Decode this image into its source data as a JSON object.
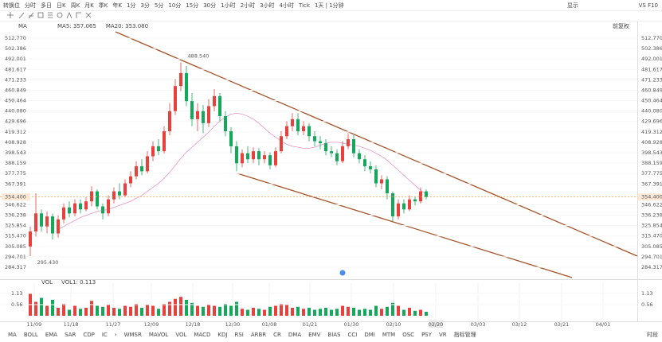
{
  "toolbar": {
    "items": [
      "转换位",
      "分时",
      "多日",
      "日K",
      "周K",
      "月K",
      "季K",
      "年K",
      "1分",
      "3分",
      "5分",
      "10分",
      "15分",
      "30分",
      "1小时",
      "2小时",
      "3小时",
      "4小时",
      "Tick",
      "1天 | 1分钟"
    ],
    "active_index": 17,
    "right": [
      "显示",
      "VS F10"
    ]
  },
  "chart_data": {
    "type": "candlestick",
    "legend": {
      "name": "MA",
      "items": [
        {
          "label": "MA5: 357.065",
          "color": "#f39a2b"
        },
        {
          "label": "MA20: 353.080",
          "color": "#e37bc1"
        }
      ],
      "adjust": "前复权"
    },
    "xlim": [
      -5.43,
      108.86
    ],
    "xticks": [
      {
        "value": 0.7,
        "label": "11/09"
      },
      {
        "value": 7.29,
        "label": "11/18"
      },
      {
        "value": 14.86,
        "label": "11/27"
      },
      {
        "value": 21.71,
        "label": "12/09"
      },
      {
        "value": 29.14,
        "label": "12/18"
      },
      {
        "value": 36.29,
        "label": "12/30"
      },
      {
        "value": 42.86,
        "label": "01/08"
      },
      {
        "value": 50.14,
        "label": "01/21"
      },
      {
        "value": 57.57,
        "label": "01/30"
      },
      {
        "value": 65.14,
        "label": "02/10"
      },
      {
        "value": 72.71,
        "label": "02/20"
      },
      {
        "value": 80.29,
        "label": "03/03"
      },
      {
        "value": 87.71,
        "label": "03/12"
      },
      {
        "value": 95.29,
        "label": "03/21"
      },
      {
        "value": 102.71,
        "label": "04/01"
      }
    ],
    "ylim": [
      277.18,
      519.12
    ],
    "yticks": [
      {
        "value": 512.77,
        "label": "512.770"
      },
      {
        "value": 502.386,
        "label": "502.386"
      },
      {
        "value": 492.001,
        "label": "492.001"
      },
      {
        "value": 481.617,
        "label": "481.617"
      },
      {
        "value": 471.233,
        "label": "471.233"
      },
      {
        "value": 460.849,
        "label": "460.849"
      },
      {
        "value": 450.464,
        "label": "450.464"
      },
      {
        "value": 440.08,
        "label": "440.080"
      },
      {
        "value": 429.696,
        "label": "429.696"
      },
      {
        "value": 419.312,
        "label": "419.312"
      },
      {
        "value": 408.928,
        "label": "408.928"
      },
      {
        "value": 398.543,
        "label": "398.543"
      },
      {
        "value": 388.159,
        "label": "388.159"
      },
      {
        "value": 377.775,
        "label": "377.775"
      },
      {
        "value": 367.391,
        "label": "367.391"
      },
      {
        "value": 346.622,
        "label": "346.622"
      },
      {
        "value": 336.238,
        "label": "336.238"
      },
      {
        "value": 325.854,
        "label": "325.854"
      },
      {
        "value": 315.47,
        "label": "315.470"
      },
      {
        "value": 305.085,
        "label": "305.085"
      },
      {
        "value": 294.701,
        "label": "294.701"
      },
      {
        "value": 284.317,
        "label": "284.317"
      }
    ],
    "up_color": "#e8413c",
    "down_color": "#14a85a",
    "open": [
      305,
      320,
      338,
      325,
      335,
      318,
      332,
      344,
      338,
      348,
      342,
      350,
      360,
      345,
      338,
      352,
      360,
      356,
      368,
      375,
      385,
      380,
      395,
      405,
      400,
      420,
      440,
      465,
      478,
      450,
      432,
      440,
      428,
      445,
      455,
      435,
      420,
      405,
      388,
      398,
      392,
      400,
      392,
      396,
      386,
      400,
      415,
      425,
      432,
      420,
      425,
      415,
      410,
      408,
      400,
      398,
      390,
      405,
      412,
      398,
      392,
      385,
      382,
      368,
      372,
      358,
      335,
      348,
      342,
      352,
      350,
      360
    ],
    "high": [
      325,
      358,
      342,
      340,
      338,
      336,
      348,
      350,
      352,
      352,
      354,
      365,
      362,
      348,
      356,
      364,
      368,
      372,
      380,
      390,
      392,
      400,
      410,
      412,
      425,
      448,
      472,
      488.54,
      485,
      458,
      448,
      446,
      452,
      462,
      458,
      440,
      424,
      410,
      402,
      405,
      404,
      403,
      400,
      399,
      404,
      420,
      430,
      438,
      438,
      430,
      428,
      420,
      415,
      412,
      405,
      402,
      410,
      418,
      416,
      402,
      396,
      390,
      386,
      376,
      375,
      360,
      352,
      352,
      356,
      355,
      364,
      362
    ],
    "low": [
      295.43,
      315,
      320,
      318,
      312,
      314,
      328,
      334,
      335,
      338,
      340,
      345,
      342,
      332,
      335,
      348,
      352,
      354,
      364,
      372,
      376,
      378,
      390,
      396,
      398,
      416,
      436,
      460,
      445,
      425,
      420,
      418,
      424,
      440,
      430,
      415,
      398,
      380,
      384,
      388,
      388,
      386,
      388,
      382,
      384,
      398,
      412,
      420,
      416,
      416,
      410,
      405,
      402,
      396,
      394,
      386,
      388,
      402,
      394,
      388,
      380,
      378,
      364,
      362,
      352,
      330,
      332,
      338,
      340,
      346,
      348,
      352
    ],
    "close": [
      320,
      338,
      325,
      335,
      318,
      332,
      344,
      338,
      348,
      342,
      350,
      360,
      345,
      338,
      352,
      360,
      356,
      368,
      375,
      385,
      380,
      395,
      405,
      400,
      420,
      440,
      465,
      478,
      450,
      432,
      440,
      428,
      445,
      455,
      435,
      420,
      405,
      388,
      398,
      392,
      400,
      392,
      396,
      386,
      400,
      415,
      425,
      432,
      420,
      425,
      415,
      410,
      408,
      400,
      398,
      390,
      405,
      412,
      398,
      392,
      385,
      382,
      368,
      372,
      358,
      335,
      348,
      342,
      352,
      350,
      360,
      354.4
    ],
    "ma_line": {
      "color": "#e9a0cf",
      "values": [
        null,
        null,
        null,
        null,
        null,
        322,
        325,
        328,
        331,
        334,
        336,
        338,
        340,
        341,
        342,
        344,
        346,
        348,
        350,
        353,
        356,
        360,
        364,
        368,
        373,
        379,
        386,
        393,
        399,
        404,
        409,
        414,
        419,
        425,
        430,
        434,
        437,
        438,
        437,
        435,
        432,
        428,
        423,
        418,
        414,
        410,
        407,
        405,
        404,
        403,
        403,
        404,
        406,
        408,
        409,
        409,
        408,
        407,
        406,
        405,
        403,
        401,
        398,
        395,
        391,
        386,
        381,
        376,
        371,
        366,
        361,
        357
      ]
    },
    "last_price": {
      "value": 354.4,
      "label": "354.400"
    },
    "annotations": [
      {
        "index": 27,
        "value": 488.54,
        "label": "488.540"
      },
      {
        "index": 0,
        "value": 295.43,
        "label": "295.430"
      }
    ],
    "volume": {
      "name": "VOL",
      "legend": "VOL1: 0.113",
      "ylim": [
        0,
        1.2
      ],
      "yticks": [
        1.13,
        0.56
      ],
      "values": [
        1.1,
        0.7,
        0.9,
        0.5,
        0.8,
        0.4,
        0.6,
        0.3,
        0.5,
        0.35,
        0.4,
        0.75,
        0.5,
        0.45,
        0.55,
        0.4,
        0.35,
        0.5,
        0.45,
        0.6,
        0.4,
        0.55,
        0.5,
        0.35,
        0.6,
        0.7,
        0.85,
        0.95,
        0.8,
        0.65,
        0.5,
        0.45,
        0.55,
        0.5,
        0.45,
        0.6,
        0.5,
        0.7,
        0.35,
        0.3,
        0.4,
        0.35,
        0.3,
        0.45,
        0.5,
        0.6,
        0.55,
        0.4,
        0.45,
        0.35,
        0.4,
        0.3,
        0.35,
        0.4,
        0.3,
        0.35,
        0.5,
        0.45,
        0.4,
        0.3,
        0.35,
        0.3,
        0.5,
        0.35,
        0.45,
        0.65,
        0.5,
        0.3,
        0.4,
        0.25,
        0.3,
        0.2
      ]
    }
  },
  "indicator_tabs": {
    "items": [
      "MA",
      "BOLL",
      "EMA",
      "SAR",
      "CDP",
      "IC",
      "›",
      "WMSR",
      "MAVOL",
      "VOL",
      "MACD",
      "KDJ",
      "RSI",
      "ARBR",
      "CR",
      "DMA",
      "EMV",
      "BIAS",
      "CCI",
      "DMI",
      "MTM",
      "OSC",
      "PSY",
      "VR",
      "指标管理"
    ],
    "active": [
      0,
      9,
      24
    ],
    "right": "时段"
  }
}
